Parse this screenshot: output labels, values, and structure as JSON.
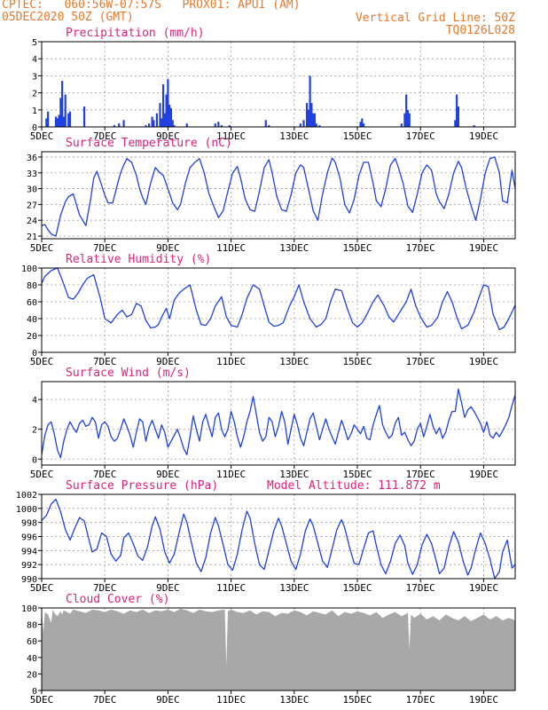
{
  "header": {
    "line1_left": "CPTEC:   060:56W-07:57S   PROX01: APUI (AM)",
    "line2_left": "05DEC2020 50Z (GMT)",
    "line1_right": "Vertical Grid Line: 50Z",
    "line2_right": "TQ0126L028"
  },
  "colors": {
    "header": "#e8782a",
    "title": "#e0207a",
    "series": "#2040e0",
    "cloud": "#a8a8a8",
    "grid": "#9a9a9a"
  },
  "x_axis": {
    "ticks": [
      {
        "v": 0,
        "l": "5DEC"
      },
      {
        "v": 2,
        "l": "7DEC"
      },
      {
        "v": 4,
        "l": "9DEC"
      },
      {
        "v": 6,
        "l": "11DEC"
      },
      {
        "v": 8,
        "l": "13DEC"
      },
      {
        "v": 10,
        "l": "15DEC"
      },
      {
        "v": 12,
        "l": "17DEC"
      },
      {
        "v": 14,
        "l": "19DEC"
      }
    ],
    "range": [
      0,
      15
    ]
  },
  "chart_data": [
    {
      "id": "precip",
      "type": "bar",
      "title": "Precipitation (mm/h)",
      "ylim": [
        0,
        5
      ],
      "yticks": [
        0,
        1,
        2,
        3,
        4,
        5
      ],
      "grid": true,
      "x": [
        0.15,
        0.2,
        0.45,
        0.5,
        0.55,
        0.6,
        0.65,
        0.7,
        0.75,
        0.85,
        0.9,
        1.35,
        2.3,
        2.45,
        2.6,
        3.3,
        3.4,
        3.5,
        3.55,
        3.65,
        3.75,
        3.8,
        3.85,
        3.9,
        3.95,
        4.0,
        4.05,
        4.1,
        4.15,
        4.2,
        4.6,
        5.5,
        5.6,
        5.7,
        5.95,
        7.1,
        7.2,
        8.2,
        8.3,
        8.4,
        8.45,
        8.5,
        8.55,
        8.6,
        8.65,
        8.7,
        8.8,
        10.1,
        10.15,
        10.2,
        11.4,
        11.5,
        11.55,
        11.6,
        11.65,
        13.1,
        13.15,
        13.2,
        13.7
      ],
      "values": [
        0.5,
        0.9,
        0.6,
        0.5,
        0.7,
        1.7,
        2.7,
        0.6,
        1.9,
        0.8,
        0.9,
        1.2,
        0.1,
        0.2,
        0.4,
        0.1,
        0.2,
        0.6,
        0.4,
        0.8,
        1.4,
        0.5,
        2.5,
        0.8,
        1.9,
        2.8,
        1.3,
        1.1,
        0.4,
        0.1,
        0.2,
        0.2,
        0.3,
        0.1,
        0.1,
        0.4,
        0.1,
        0.2,
        0.4,
        1.4,
        1.0,
        3.0,
        1.4,
        0.8,
        0.8,
        0.2,
        0.1,
        0.3,
        0.5,
        0.2,
        0.2,
        0.8,
        1.9,
        1.0,
        0.8,
        0.4,
        1.9,
        1.2,
        0.1
      ]
    },
    {
      "id": "temp",
      "type": "line",
      "title": "Surface Temperature (nC)",
      "ylim": [
        20.5,
        37
      ],
      "yticks": [
        21,
        24,
        27,
        30,
        33,
        36
      ],
      "grid": true,
      "x": [
        0,
        0.1,
        0.2,
        0.3,
        0.45,
        0.6,
        0.75,
        0.85,
        1.0,
        1.1,
        1.2,
        1.3,
        1.4,
        1.55,
        1.65,
        1.75,
        1.85,
        2.0,
        2.1,
        2.25,
        2.4,
        2.5,
        2.6,
        2.7,
        2.85,
        3.0,
        3.1,
        3.2,
        3.3,
        3.45,
        3.6,
        3.75,
        3.85,
        4.0,
        4.15,
        4.3,
        4.4,
        4.55,
        4.7,
        4.85,
        5.0,
        5.15,
        5.3,
        5.45,
        5.6,
        5.75,
        5.9,
        6.05,
        6.2,
        6.3,
        6.45,
        6.6,
        6.75,
        6.9,
        7.05,
        7.2,
        7.3,
        7.45,
        7.6,
        7.75,
        7.9,
        8.05,
        8.2,
        8.3,
        8.45,
        8.6,
        8.75,
        8.9,
        9.05,
        9.2,
        9.3,
        9.45,
        9.6,
        9.75,
        9.9,
        10.05,
        10.2,
        10.35,
        10.5,
        10.6,
        10.75,
        10.9,
        11.05,
        11.2,
        11.3,
        11.45,
        11.6,
        11.75,
        11.9,
        12.05,
        12.2,
        12.35,
        12.5,
        12.6,
        12.75,
        12.9,
        13.05,
        13.2,
        13.3,
        13.45,
        13.6,
        13.75,
        13.9,
        14.05,
        14.2,
        14.35,
        14.5,
        14.6,
        14.75,
        14.9,
        15.0
      ],
      "values": [
        23.0,
        23.2,
        22.2,
        21.4,
        21.0,
        25.0,
        27.5,
        28.5,
        29.0,
        27.0,
        25.0,
        24.0,
        23.0,
        28.0,
        32.0,
        33.3,
        31.5,
        28.8,
        27.3,
        27.3,
        30.8,
        33.0,
        34.5,
        35.7,
        35.0,
        32.5,
        30.0,
        28.3,
        27.0,
        31.0,
        34.0,
        33.0,
        32.5,
        30.0,
        27.3,
        26.0,
        27.0,
        31.0,
        34.0,
        35.0,
        35.7,
        33.0,
        29.0,
        26.7,
        24.5,
        25.8,
        29.5,
        33.0,
        34.2,
        32.0,
        28.0,
        26.0,
        25.7,
        29.5,
        34.0,
        35.5,
        33.0,
        28.5,
        26.0,
        25.7,
        28.8,
        33.0,
        34.5,
        34.0,
        30.0,
        25.8,
        24.0,
        29.0,
        33.0,
        35.8,
        35.0,
        32.0,
        27.0,
        25.4,
        28.0,
        32.5,
        35.0,
        35.0,
        31.0,
        27.7,
        26.6,
        30.0,
        34.5,
        35.7,
        34.0,
        31.0,
        26.7,
        25.5,
        29.0,
        33.0,
        34.5,
        33.5,
        29.0,
        27.5,
        26.2,
        29.0,
        33.0,
        35.2,
        34.0,
        30.0,
        26.8,
        24.0,
        28.0,
        33.0,
        35.7,
        36.0,
        33.0,
        27.7,
        27.3,
        33.5,
        30.0
      ]
    },
    {
      "id": "rh",
      "type": "line",
      "title": "Relative Humidity (%)",
      "ylim": [
        0,
        100
      ],
      "yticks": [
        0,
        20,
        40,
        60,
        80,
        100
      ],
      "grid": true,
      "x": [
        0,
        0.1,
        0.3,
        0.5,
        0.65,
        0.85,
        1.0,
        1.15,
        1.3,
        1.45,
        1.65,
        1.85,
        2.0,
        2.2,
        2.4,
        2.55,
        2.7,
        2.85,
        3.0,
        3.15,
        3.3,
        3.45,
        3.6,
        3.7,
        3.8,
        3.95,
        4.05,
        4.2,
        4.35,
        4.5,
        4.7,
        4.9,
        5.05,
        5.2,
        5.35,
        5.5,
        5.7,
        5.85,
        6.0,
        6.2,
        6.35,
        6.5,
        6.7,
        6.9,
        7.05,
        7.2,
        7.35,
        7.5,
        7.65,
        7.85,
        8.0,
        8.15,
        8.3,
        8.5,
        8.7,
        8.85,
        9.0,
        9.15,
        9.3,
        9.5,
        9.7,
        9.85,
        10.0,
        10.15,
        10.3,
        10.5,
        10.65,
        10.85,
        11.0,
        11.15,
        11.35,
        11.55,
        11.7,
        11.85,
        12.0,
        12.2,
        12.35,
        12.55,
        12.7,
        12.85,
        13.0,
        13.15,
        13.3,
        13.5,
        13.7,
        13.85,
        14.0,
        14.15,
        14.3,
        14.5,
        14.65,
        14.8,
        15.0
      ],
      "values": [
        82,
        90,
        97,
        100,
        86,
        65,
        63,
        70,
        80,
        88,
        92,
        65,
        40,
        35,
        45,
        50,
        42,
        45,
        58,
        55,
        38,
        29,
        30,
        33,
        42,
        52,
        40,
        62,
        70,
        75,
        80,
        50,
        33,
        32,
        40,
        55,
        66,
        42,
        32,
        30,
        45,
        64,
        80,
        75,
        55,
        36,
        31,
        32,
        35,
        55,
        66,
        80,
        60,
        40,
        30,
        33,
        40,
        60,
        75,
        73,
        50,
        35,
        30,
        35,
        45,
        60,
        68,
        55,
        42,
        36,
        48,
        60,
        75,
        55,
        42,
        30,
        32,
        42,
        60,
        72,
        60,
        42,
        28,
        32,
        48,
        65,
        80,
        78,
        45,
        27,
        30,
        40,
        56
      ]
    },
    {
      "id": "wind",
      "type": "line",
      "title": "Surface Wind (m/s)",
      "ylim": [
        -0.4,
        5.2
      ],
      "yticks": [
        0,
        2,
        4
      ],
      "grid": true,
      "x": [
        0,
        0.1,
        0.2,
        0.3,
        0.4,
        0.5,
        0.6,
        0.7,
        0.8,
        0.9,
        1.0,
        1.1,
        1.2,
        1.3,
        1.4,
        1.5,
        1.6,
        1.7,
        1.8,
        1.9,
        2.0,
        2.1,
        2.2,
        2.3,
        2.4,
        2.5,
        2.6,
        2.7,
        2.8,
        2.9,
        3.0,
        3.1,
        3.2,
        3.3,
        3.4,
        3.5,
        3.6,
        3.7,
        3.8,
        3.9,
        4.0,
        4.1,
        4.2,
        4.3,
        4.4,
        4.5,
        4.6,
        4.7,
        4.8,
        4.9,
        5.0,
        5.1,
        5.2,
        5.3,
        5.4,
        5.5,
        5.6,
        5.7,
        5.8,
        5.9,
        6.0,
        6.1,
        6.2,
        6.3,
        6.4,
        6.5,
        6.6,
        6.7,
        6.8,
        6.9,
        7.0,
        7.1,
        7.2,
        7.3,
        7.4,
        7.5,
        7.6,
        7.7,
        7.8,
        7.9,
        8.0,
        8.1,
        8.2,
        8.3,
        8.4,
        8.5,
        8.6,
        8.7,
        8.8,
        8.9,
        9.0,
        9.1,
        9.2,
        9.3,
        9.4,
        9.5,
        9.6,
        9.7,
        9.8,
        9.9,
        10.0,
        10.1,
        10.2,
        10.3,
        10.4,
        10.5,
        10.6,
        10.7,
        10.8,
        10.9,
        11.0,
        11.1,
        11.2,
        11.3,
        11.4,
        11.5,
        11.6,
        11.7,
        11.8,
        11.9,
        12.0,
        12.1,
        12.2,
        12.3,
        12.4,
        12.5,
        12.6,
        12.7,
        12.8,
        12.9,
        13.0,
        13.1,
        13.2,
        13.3,
        13.4,
        13.5,
        13.6,
        13.7,
        13.8,
        13.9,
        14.0,
        14.1,
        14.2,
        14.3,
        14.4,
        14.5,
        14.6,
        14.7,
        14.8,
        14.9,
        15.0
      ],
      "values": [
        0.3,
        1.6,
        2.3,
        2.5,
        1.7,
        0.6,
        0.1,
        1.2,
        2.0,
        2.5,
        2.1,
        1.8,
        2.4,
        2.6,
        2.2,
        2.3,
        2.8,
        2.5,
        1.4,
        2.3,
        2.5,
        2.2,
        1.5,
        1.2,
        1.4,
        2.0,
        2.7,
        2.2,
        1.6,
        0.8,
        1.8,
        2.7,
        2.5,
        1.2,
        2.1,
        2.6,
        2.0,
        1.4,
        2.3,
        1.8,
        0.8,
        1.2,
        1.6,
        2.0,
        1.4,
        0.7,
        0.3,
        1.5,
        2.9,
        2.0,
        1.2,
        2.5,
        3.0,
        2.2,
        1.5,
        2.8,
        3.1,
        2.0,
        1.5,
        2.0,
        3.2,
        2.5,
        1.5,
        0.8,
        1.5,
        2.5,
        3.2,
        4.2,
        3.0,
        1.8,
        1.2,
        1.5,
        2.8,
        2.5,
        1.5,
        2.2,
        3.2,
        2.5,
        1.0,
        2.0,
        3.0,
        2.3,
        1.4,
        0.9,
        1.8,
        2.7,
        3.1,
        2.2,
        1.3,
        2.0,
        2.7,
        2.0,
        1.5,
        1.0,
        1.8,
        2.6,
        2.0,
        1.3,
        1.7,
        2.3,
        2.0,
        1.7,
        2.2,
        1.4,
        1.3,
        2.3,
        3.0,
        3.6,
        2.3,
        1.8,
        1.4,
        1.6,
        2.4,
        2.8,
        1.6,
        1.8,
        1.3,
        0.9,
        1.2,
        2.0,
        2.4,
        1.5,
        2.2,
        3.0,
        2.2,
        1.7,
        2.1,
        1.4,
        1.8,
        2.6,
        3.2,
        3.2,
        4.7,
        3.8,
        2.8,
        3.3,
        3.5,
        3.2,
        2.8,
        2.4,
        1.8,
        2.5,
        1.6,
        1.4,
        1.8,
        1.5,
        1.9,
        2.3,
        2.8,
        3.6,
        4.3
      ]
    },
    {
      "id": "pressure",
      "type": "line",
      "title": "Surface Pressure (hPa)",
      "annotation": "Model Altitude: 111.872  m",
      "ylim": [
        990,
        1002
      ],
      "yticks": [
        990,
        992,
        994,
        996,
        998,
        1000,
        1002
      ],
      "grid": true,
      "x": [
        0,
        0.15,
        0.3,
        0.45,
        0.6,
        0.75,
        0.9,
        1.05,
        1.2,
        1.35,
        1.5,
        1.6,
        1.75,
        1.9,
        2.05,
        2.2,
        2.35,
        2.5,
        2.6,
        2.75,
        2.9,
        3.05,
        3.2,
        3.35,
        3.5,
        3.6,
        3.75,
        3.9,
        4.05,
        4.2,
        4.35,
        4.5,
        4.6,
        4.75,
        4.9,
        5.05,
        5.2,
        5.35,
        5.5,
        5.6,
        5.75,
        5.9,
        6.05,
        6.2,
        6.35,
        6.5,
        6.6,
        6.75,
        6.9,
        7.05,
        7.2,
        7.35,
        7.5,
        7.6,
        7.75,
        7.9,
        8.05,
        8.2,
        8.35,
        8.5,
        8.6,
        8.75,
        8.9,
        9.05,
        9.2,
        9.35,
        9.5,
        9.6,
        9.75,
        9.9,
        10.05,
        10.2,
        10.35,
        10.5,
        10.6,
        10.75,
        10.9,
        11.05,
        11.2,
        11.35,
        11.5,
        11.6,
        11.75,
        11.9,
        12.05,
        12.2,
        12.35,
        12.5,
        12.6,
        12.75,
        12.9,
        13.05,
        13.2,
        13.35,
        13.5,
        13.6,
        13.75,
        13.9,
        14.05,
        14.2,
        14.35,
        14.5,
        14.6,
        14.75,
        14.9,
        15.0
      ],
      "values": [
        998.3,
        999.0,
        1000.6,
        1001.3,
        999.5,
        997.0,
        995.5,
        997.2,
        998.7,
        998.2,
        995.5,
        993.8,
        994.2,
        996.5,
        996.0,
        993.5,
        992.5,
        993.3,
        995.8,
        996.5,
        995.0,
        993.2,
        992.6,
        994.5,
        997.5,
        998.8,
        997.0,
        993.8,
        992.2,
        993.5,
        996.5,
        999.2,
        998.0,
        995.0,
        992.2,
        991.0,
        993.0,
        996.5,
        998.7,
        997.5,
        994.8,
        992.0,
        991.2,
        993.5,
        997.0,
        999.6,
        998.6,
        995.0,
        992.0,
        991.3,
        994.0,
        996.8,
        998.6,
        997.5,
        995.0,
        992.5,
        991.3,
        993.5,
        996.8,
        998.5,
        997.5,
        995.0,
        992.5,
        991.6,
        994.2,
        997.0,
        998.4,
        997.2,
        994.5,
        992.2,
        992.0,
        994.3,
        996.5,
        996.8,
        994.7,
        992.0,
        990.7,
        992.5,
        995.0,
        996.2,
        994.7,
        992.2,
        990.6,
        992.0,
        994.8,
        996.3,
        995.0,
        992.5,
        990.7,
        991.5,
        994.5,
        996.7,
        995.2,
        992.5,
        990.5,
        991.5,
        994.2,
        996.5,
        995.0,
        992.8,
        989.8,
        991.0,
        993.8,
        995.5,
        991.5,
        992.0
      ]
    },
    {
      "id": "cloud",
      "type": "area",
      "title": "Cloud Cover (%)",
      "ylim": [
        0,
        100
      ],
      "yticks": [
        0,
        20,
        40,
        60,
        80,
        100
      ],
      "grid": true,
      "x": [
        0,
        0.05,
        0.1,
        0.2,
        0.3,
        0.35,
        0.4,
        0.5,
        0.6,
        0.65,
        0.7,
        0.8,
        0.9,
        1.0,
        1.2,
        1.4,
        1.6,
        1.8,
        2.0,
        2.2,
        2.4,
        2.6,
        2.8,
        3.0,
        3.2,
        3.4,
        3.6,
        3.8,
        4.0,
        4.2,
        4.4,
        4.6,
        4.8,
        5.0,
        5.2,
        5.4,
        5.6,
        5.8,
        5.85,
        5.9,
        6.0,
        6.2,
        6.4,
        6.6,
        6.8,
        7.0,
        7.2,
        7.4,
        7.6,
        7.8,
        8.0,
        8.2,
        8.4,
        8.6,
        8.8,
        9.0,
        9.2,
        9.4,
        9.6,
        9.8,
        10.0,
        10.2,
        10.4,
        10.6,
        10.8,
        11.0,
        11.2,
        11.4,
        11.6,
        11.65,
        11.7,
        11.8,
        12.0,
        12.2,
        12.4,
        12.6,
        12.8,
        13.0,
        13.2,
        13.4,
        13.6,
        13.8,
        14.0,
        14.2,
        14.4,
        14.6,
        14.8,
        15.0
      ],
      "values": [
        100,
        70,
        95,
        92,
        82,
        98,
        94,
        90,
        96,
        92,
        97,
        95,
        93,
        98,
        96,
        94,
        98,
        97,
        95,
        98,
        96,
        93,
        97,
        95,
        98,
        94,
        97,
        96,
        98,
        95,
        99,
        97,
        94,
        98,
        96,
        95,
        97,
        98,
        30,
        96,
        98,
        95,
        94,
        97,
        92,
        96,
        95,
        90,
        94,
        93,
        97,
        95,
        91,
        96,
        94,
        92,
        97,
        90,
        95,
        93,
        96,
        94,
        91,
        95,
        88,
        92,
        95,
        90,
        94,
        50,
        92,
        88,
        93,
        86,
        90,
        85,
        92,
        88,
        85,
        90,
        84,
        88,
        92,
        86,
        90,
        85,
        88,
        85
      ]
    }
  ]
}
